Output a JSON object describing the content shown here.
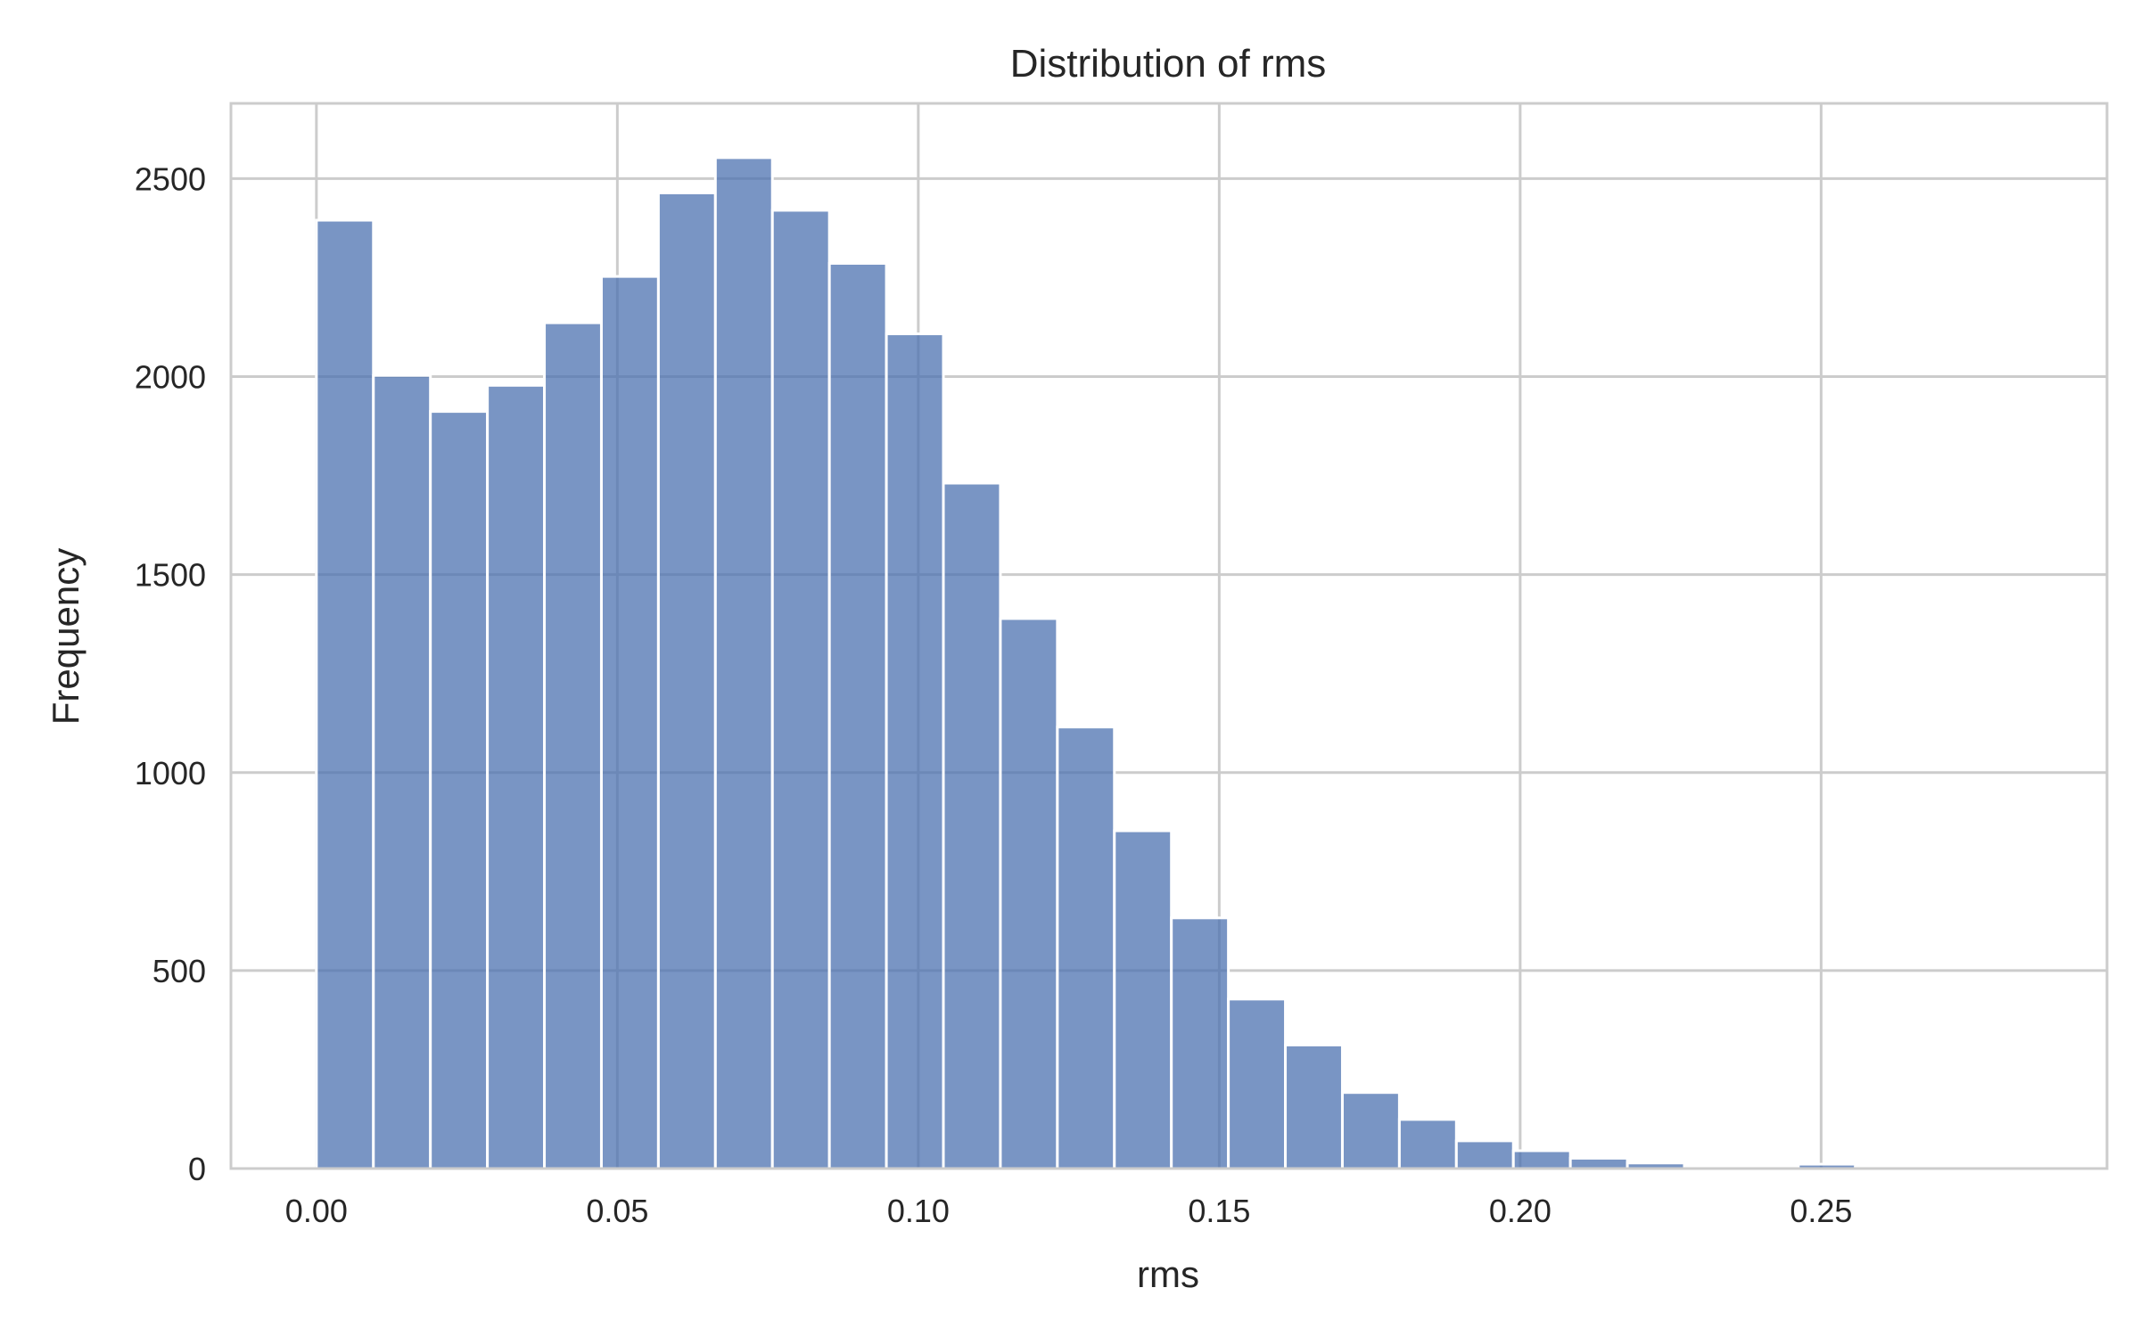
{
  "chart_data": {
    "type": "bar",
    "title": "Distribution of rms",
    "xlabel": "rms",
    "ylabel": "Frequency",
    "xlim": [
      -0.0142,
      0.2975
    ],
    "ylim": [
      0,
      2690
    ],
    "xticks": [
      "0.00",
      "0.05",
      "0.10",
      "0.15",
      "0.20",
      "0.25"
    ],
    "xtick_values": [
      0.0,
      0.05,
      0.1,
      0.15,
      0.2,
      0.25
    ],
    "yticks": [
      "0",
      "500",
      "1000",
      "1500",
      "2000",
      "2500"
    ],
    "ytick_values": [
      0,
      500,
      1000,
      1500,
      2000,
      2500
    ],
    "bin_start": 0.0,
    "bin_width": 0.00947,
    "values": [
      2395,
      2003,
      1912,
      1978,
      2136,
      2253,
      2464,
      2553,
      2420,
      2286,
      2108,
      1731,
      1389,
      1115,
      853,
      633,
      428,
      312,
      192,
      124,
      70,
      45,
      26,
      14,
      5,
      4,
      11,
      3,
      3,
      2
    ],
    "color": "#4c72b0",
    "bar_opacity": 0.75,
    "grid": true,
    "legend": "none"
  }
}
